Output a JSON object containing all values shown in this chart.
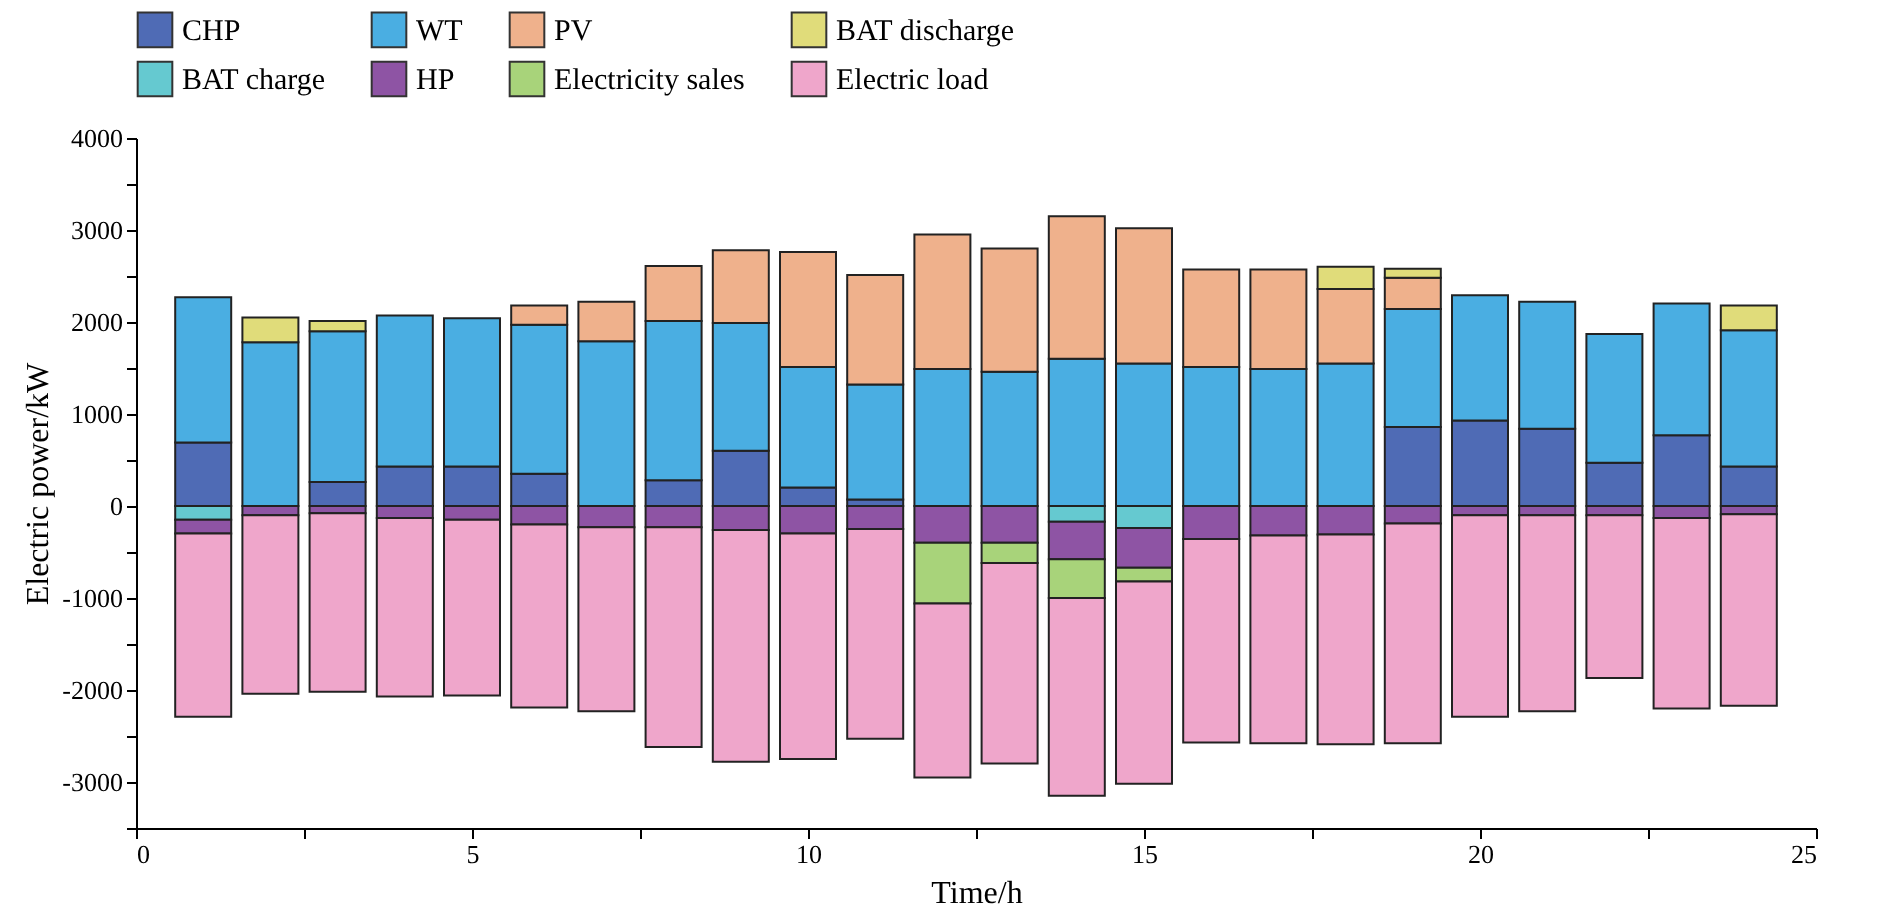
{
  "chart_data": {
    "type": "bar",
    "stacked": true,
    "xlabel": "Time/h",
    "ylabel": "Electric power/kW",
    "x": [
      1,
      2,
      3,
      4,
      5,
      6,
      7,
      8,
      9,
      10,
      11,
      12,
      13,
      14,
      15,
      16,
      17,
      18,
      19,
      20,
      21,
      22,
      23,
      24
    ],
    "xlim": [
      0,
      25
    ],
    "xticks": [
      0,
      {
        "value": 2.5,
        "label": null
      },
      5,
      {
        "value": 7.5,
        "label": null
      },
      10,
      {
        "value": 12.5,
        "label": null
      },
      15,
      {
        "value": 17.5,
        "label": null
      },
      20,
      {
        "value": 22.5,
        "label": null
      },
      25
    ],
    "ylim": [
      -3500,
      4000
    ],
    "yticks": [
      {
        "value": -3500,
        "label": null
      },
      -3000,
      {
        "value": -2500,
        "label": null
      },
      -2000,
      {
        "value": -1500,
        "label": null
      },
      -1000,
      {
        "value": -500,
        "label": null
      },
      0,
      {
        "value": 500,
        "label": null
      },
      1000,
      {
        "value": 1500,
        "label": null
      },
      2000,
      {
        "value": 2500,
        "label": null
      },
      3000,
      {
        "value": 3500,
        "label": null
      },
      4000
    ],
    "grid": false,
    "legend": "top",
    "series": [
      {
        "name": "CHP",
        "color": "#4f6bb5",
        "values": [
          690,
          null,
          260,
          430,
          430,
          350,
          null,
          280,
          600,
          200,
          70,
          null,
          null,
          null,
          null,
          null,
          null,
          null,
          860,
          930,
          840,
          470,
          770,
          430
        ]
      },
      {
        "name": "WT",
        "color": "#4aaee2",
        "values": [
          1580,
          1780,
          1640,
          1640,
          1610,
          1620,
          1790,
          1730,
          1390,
          1310,
          1250,
          1490,
          1460,
          1600,
          1550,
          1510,
          1490,
          1550,
          1280,
          1360,
          1380,
          1400,
          1430,
          1480
        ]
      },
      {
        "name": "PV",
        "color": "#efb18c",
        "values": [
          null,
          null,
          null,
          null,
          null,
          210,
          430,
          600,
          790,
          1250,
          1190,
          1460,
          1340,
          1550,
          1470,
          1060,
          1080,
          810,
          340,
          null,
          null,
          null,
          null,
          null
        ]
      },
      {
        "name": "BAT discharge",
        "color": "#e0dc7a",
        "values": [
          null,
          270,
          110,
          null,
          null,
          null,
          null,
          null,
          null,
          null,
          null,
          null,
          null,
          null,
          null,
          null,
          null,
          240,
          100,
          null,
          null,
          null,
          null,
          270
        ]
      },
      {
        "name": "BAT charge",
        "color": "#65c9d0",
        "values": [
          -150,
          null,
          null,
          null,
          null,
          null,
          null,
          null,
          null,
          null,
          null,
          null,
          null,
          -170,
          -240,
          null,
          null,
          null,
          null,
          null,
          null,
          null,
          null,
          null
        ]
      },
      {
        "name": "HP",
        "color": "#8e54a4",
        "values": [
          -150,
          -100,
          -80,
          -130,
          -150,
          -200,
          -230,
          -230,
          -260,
          -300,
          -250,
          -400,
          -400,
          -410,
          -430,
          -360,
          -320,
          -310,
          -190,
          -100,
          -100,
          -100,
          -130,
          -90
        ]
      },
      {
        "name": "Electricity sales",
        "color": "#a8d37a",
        "values": [
          null,
          null,
          null,
          null,
          null,
          null,
          null,
          null,
          null,
          null,
          null,
          -660,
          -220,
          -420,
          -150,
          null,
          null,
          null,
          null,
          null,
          null,
          null,
          null,
          null
        ]
      },
      {
        "name": "Electric load",
        "color": "#efa6cb",
        "values": [
          -1990,
          -1940,
          -1940,
          -1940,
          -1910,
          -1990,
          -2000,
          -2390,
          -2520,
          -2450,
          -2280,
          -1890,
          -2180,
          -2150,
          -2200,
          -2210,
          -2260,
          -2280,
          -2390,
          -2190,
          -2130,
          -1770,
          -2070,
          -2080
        ]
      }
    ]
  }
}
